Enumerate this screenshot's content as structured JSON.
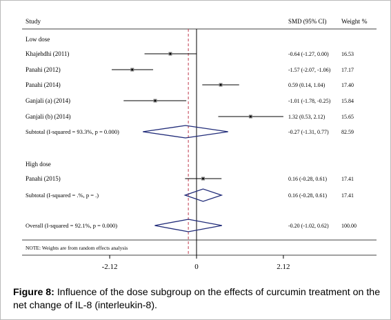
{
  "chart_data": {
    "type": "forest",
    "headers": {
      "study": "Study",
      "smd": "SMD (95% CI)",
      "weight": "Weight %"
    },
    "x_ticks": [
      {
        "value": -2.12,
        "label": "-2.12"
      },
      {
        "value": 0,
        "label": "0"
      },
      {
        "value": 2.12,
        "label": "2.12"
      }
    ],
    "overall_effect": -0.2,
    "groups": [
      {
        "name": "Low dose",
        "studies": [
          {
            "label": "Khajehdhi (2011)",
            "smd": -0.64,
            "lo": -1.27,
            "hi": 0.0,
            "ci_text": "-0.64 (-1.27, 0.00)",
            "weight": "16.53"
          },
          {
            "label": "Panahi (2012)",
            "smd": -1.57,
            "lo": -2.07,
            "hi": -1.06,
            "ci_text": "-1.57 (-2.07, -1.06)",
            "weight": "17.17"
          },
          {
            "label": "Panahi (2014)",
            "smd": 0.59,
            "lo": 0.14,
            "hi": 1.04,
            "ci_text": "0.59 (0.14, 1.04)",
            "weight": "17.40"
          },
          {
            "label": "Ganjali (a) (2014)",
            "smd": -1.01,
            "lo": -1.78,
            "hi": -0.25,
            "ci_text": "-1.01 (-1.78, -0.25)",
            "weight": "15.84"
          },
          {
            "label": "Ganjali (b) (2014)",
            "smd": 1.32,
            "lo": 0.53,
            "hi": 2.12,
            "ci_text": "1.32 (0.53, 2.12)",
            "weight": "15.65"
          }
        ],
        "subtotal": {
          "label": "Subtotal  (I-squared = 93.3%, p = 0.000)",
          "smd": -0.27,
          "lo": -1.31,
          "hi": 0.77,
          "ci_text": "-0.27 (-1.31, 0.77)",
          "weight": "82.59"
        }
      },
      {
        "name": "High dose",
        "studies": [
          {
            "label": "Panahi (2015)",
            "smd": 0.16,
            "lo": -0.28,
            "hi": 0.61,
            "ci_text": "0.16 (-0.28, 0.61)",
            "weight": "17.41"
          }
        ],
        "subtotal": {
          "label": "Subtotal  (I-squared = .%, p = .)",
          "smd": 0.16,
          "lo": -0.28,
          "hi": 0.61,
          "ci_text": "0.16 (-0.28, 0.61)",
          "weight": "17.41"
        }
      }
    ],
    "overall": {
      "label": "Overall  (I-squared = 92.1%, p = 0.000)",
      "smd": -0.2,
      "lo": -1.02,
      "hi": 0.62,
      "ci_text": "-0.20 (-1.02, 0.62)",
      "weight": "100.00"
    },
    "note": "NOTE: Weights are from random effects analysis",
    "colors": {
      "diamond": "#1f2a78",
      "overall_line": "#c0394b",
      "text": "#000000"
    }
  },
  "caption": {
    "label": "Figure 8:",
    "text": " Influence of the dose subgroup on the effects of curcumin treatment on the net change of IL-8 (interleukin-8)."
  }
}
